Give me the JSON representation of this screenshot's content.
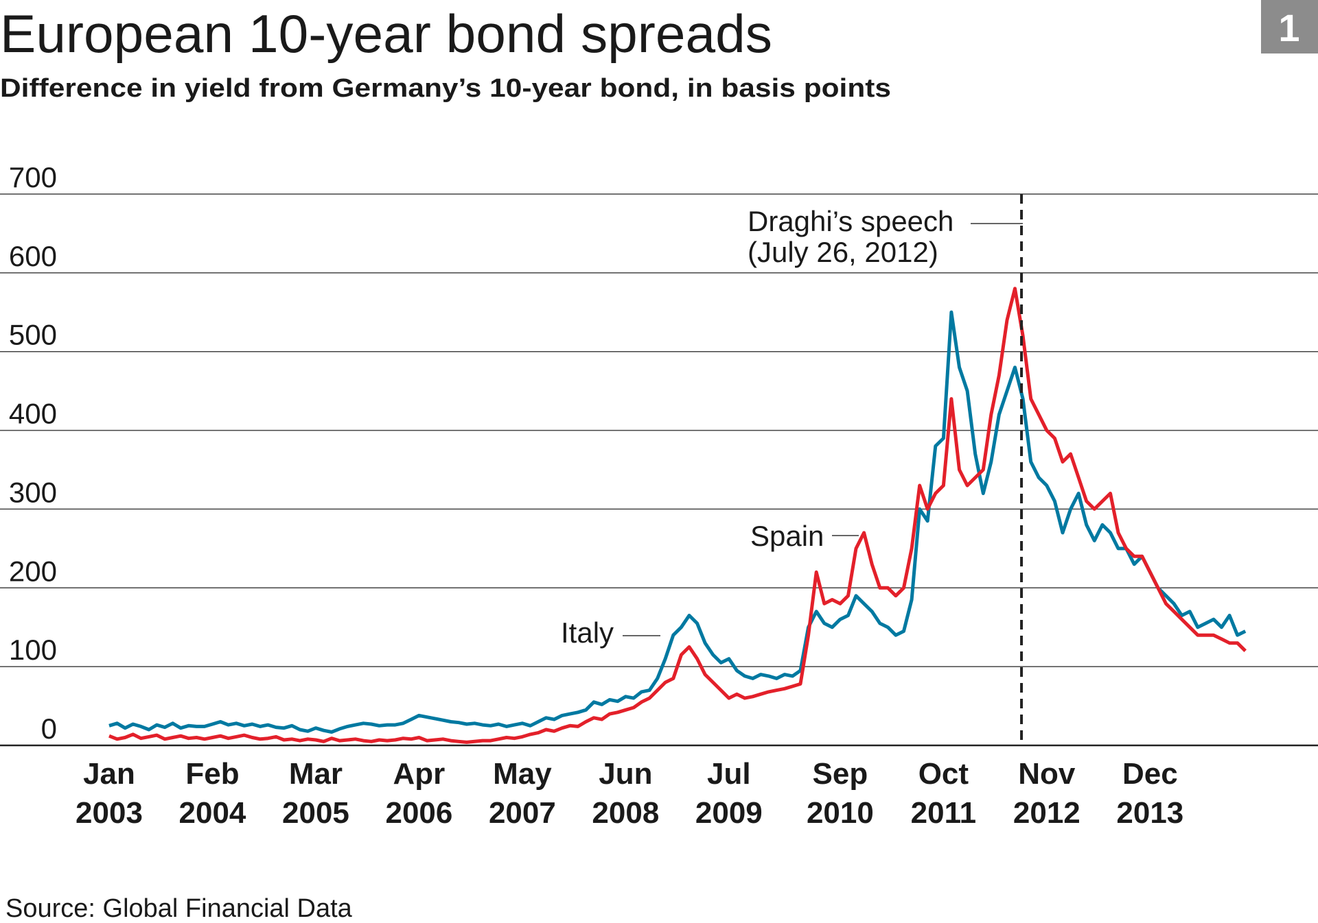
{
  "header": {
    "title": "European 10-year bond spreads",
    "subtitle": "Difference in yield from Germany’s 10-year bond, in basis points",
    "badge": "1",
    "badge_color": "#8c8c8c"
  },
  "footer": {
    "source": "Source: Global Financial Data"
  },
  "chart_data": {
    "type": "line",
    "title": "European 10-year bond spreads",
    "subtitle": "Difference in yield from Germany’s 10-year bond, in basis points",
    "ylim": [
      0,
      700
    ],
    "xlim": [
      "2003-01",
      "2015-01"
    ],
    "grid": true,
    "yticks": [
      "0",
      "100",
      "200",
      "300",
      "400",
      "500",
      "600",
      "700"
    ],
    "xticks": [
      {
        "month": "Jan",
        "year": "2003",
        "date": "2003-01"
      },
      {
        "month": "Feb",
        "year": "2004",
        "date": "2004-02"
      },
      {
        "month": "Mar",
        "year": "2005",
        "date": "2005-03"
      },
      {
        "month": "Apr",
        "year": "2006",
        "date": "2006-04"
      },
      {
        "month": "May",
        "year": "2007",
        "date": "2007-05"
      },
      {
        "month": "Jun",
        "year": "2008",
        "date": "2008-06"
      },
      {
        "month": "Jul",
        "year": "2009",
        "date": "2009-07"
      },
      {
        "month": "Sep",
        "year": "2010",
        "date": "2010-09"
      },
      {
        "month": "Oct",
        "year": "2011",
        "date": "2011-10"
      },
      {
        "month": "Nov",
        "year": "2012",
        "date": "2012-11"
      },
      {
        "month": "Dec",
        "year": "2013",
        "date": "2013-12"
      }
    ],
    "x": [
      "2003-01",
      "2003-02",
      "2003-03",
      "2003-04",
      "2003-05",
      "2003-06",
      "2003-07",
      "2003-08",
      "2003-09",
      "2003-10",
      "2003-11",
      "2003-12",
      "2004-01",
      "2004-02",
      "2004-03",
      "2004-04",
      "2004-05",
      "2004-06",
      "2004-07",
      "2004-08",
      "2004-09",
      "2004-10",
      "2004-11",
      "2004-12",
      "2005-01",
      "2005-02",
      "2005-03",
      "2005-04",
      "2005-05",
      "2005-06",
      "2005-07",
      "2005-08",
      "2005-09",
      "2005-10",
      "2005-11",
      "2005-12",
      "2006-01",
      "2006-02",
      "2006-03",
      "2006-04",
      "2006-05",
      "2006-06",
      "2006-07",
      "2006-08",
      "2006-09",
      "2006-10",
      "2006-11",
      "2006-12",
      "2007-01",
      "2007-02",
      "2007-03",
      "2007-04",
      "2007-05",
      "2007-06",
      "2007-07",
      "2007-08",
      "2007-09",
      "2007-10",
      "2007-11",
      "2007-12",
      "2008-01",
      "2008-02",
      "2008-03",
      "2008-04",
      "2008-05",
      "2008-06",
      "2008-07",
      "2008-08",
      "2008-09",
      "2008-10",
      "2008-11",
      "2008-12",
      "2009-01",
      "2009-02",
      "2009-03",
      "2009-04",
      "2009-05",
      "2009-06",
      "2009-07",
      "2009-08",
      "2009-09",
      "2009-10",
      "2009-11",
      "2009-12",
      "2010-01",
      "2010-02",
      "2010-03",
      "2010-04",
      "2010-05",
      "2010-06",
      "2010-07",
      "2010-08",
      "2010-09",
      "2010-10",
      "2010-11",
      "2010-12",
      "2011-01",
      "2011-02",
      "2011-03",
      "2011-04",
      "2011-05",
      "2011-06",
      "2011-07",
      "2011-08",
      "2011-09",
      "2011-10",
      "2011-11",
      "2011-12",
      "2012-01",
      "2012-02",
      "2012-03",
      "2012-04",
      "2012-05",
      "2012-06",
      "2012-07",
      "2012-08",
      "2012-09",
      "2012-10",
      "2012-11",
      "2012-12",
      "2013-01",
      "2013-02",
      "2013-03",
      "2013-04",
      "2013-05",
      "2013-06",
      "2013-07",
      "2013-08",
      "2013-09",
      "2013-10",
      "2013-11",
      "2013-12",
      "2014-01",
      "2014-02",
      "2014-03",
      "2014-04",
      "2014-05",
      "2014-06",
      "2014-07",
      "2014-08",
      "2014-09",
      "2014-10",
      "2014-11",
      "2014-12"
    ],
    "series": [
      {
        "name": "Italy",
        "color": "#0079a1",
        "values": [
          25,
          28,
          22,
          27,
          24,
          20,
          26,
          23,
          28,
          22,
          25,
          24,
          24,
          27,
          30,
          26,
          28,
          25,
          27,
          24,
          26,
          23,
          22,
          25,
          20,
          18,
          22,
          19,
          17,
          21,
          24,
          26,
          28,
          27,
          25,
          26,
          26,
          28,
          33,
          38,
          36,
          34,
          32,
          30,
          29,
          27,
          28,
          26,
          25,
          27,
          24,
          26,
          28,
          25,
          30,
          35,
          33,
          38,
          40,
          42,
          45,
          55,
          52,
          58,
          56,
          62,
          60,
          68,
          70,
          85,
          110,
          140,
          150,
          165,
          155,
          130,
          115,
          105,
          110,
          95,
          88,
          85,
          90,
          88,
          85,
          90,
          88,
          95,
          150,
          170,
          155,
          150,
          160,
          165,
          190,
          180,
          170,
          155,
          150,
          140,
          145,
          185,
          300,
          285,
          380,
          390,
          550,
          480,
          450,
          370,
          320,
          360,
          420,
          450,
          480,
          440,
          360,
          340,
          330,
          310,
          270,
          300,
          320,
          280,
          260,
          280,
          270,
          250,
          250,
          230,
          240,
          220,
          200,
          190,
          180,
          165,
          170,
          150,
          155,
          160,
          150,
          165,
          140,
          145
        ]
      },
      {
        "name": "Spain",
        "color": "#e3202a",
        "values": [
          12,
          8,
          10,
          14,
          9,
          11,
          13,
          8,
          10,
          12,
          9,
          10,
          8,
          10,
          12,
          9,
          11,
          13,
          10,
          8,
          9,
          11,
          7,
          8,
          6,
          8,
          7,
          5,
          9,
          6,
          7,
          8,
          6,
          5,
          7,
          6,
          7,
          9,
          8,
          10,
          6,
          7,
          8,
          6,
          5,
          4,
          5,
          6,
          6,
          8,
          10,
          9,
          11,
          14,
          16,
          20,
          18,
          22,
          25,
          24,
          30,
          35,
          33,
          40,
          42,
          45,
          48,
          55,
          60,
          70,
          80,
          85,
          115,
          125,
          110,
          90,
          80,
          70,
          60,
          65,
          60,
          62,
          65,
          68,
          70,
          72,
          75,
          78,
          140,
          220,
          180,
          185,
          180,
          190,
          250,
          270,
          230,
          200,
          200,
          190,
          200,
          250,
          330,
          300,
          320,
          330,
          440,
          350,
          330,
          340,
          350,
          420,
          470,
          540,
          580,
          520,
          440,
          420,
          400,
          390,
          360,
          370,
          340,
          310,
          300,
          310,
          320,
          270,
          250,
          240,
          240,
          220,
          200,
          180,
          170,
          160,
          150,
          140,
          140,
          140,
          135,
          130,
          130,
          120
        ]
      }
    ],
    "annotations": [
      {
        "label": "Italy",
        "series": "Italy"
      },
      {
        "label": "Spain",
        "series": "Spain"
      },
      {
        "label_line1": "Draghi’s speech",
        "label_line2": "(July 26, 2012)",
        "date": "2012-07-26",
        "style": "dashed-vertical"
      }
    ]
  }
}
